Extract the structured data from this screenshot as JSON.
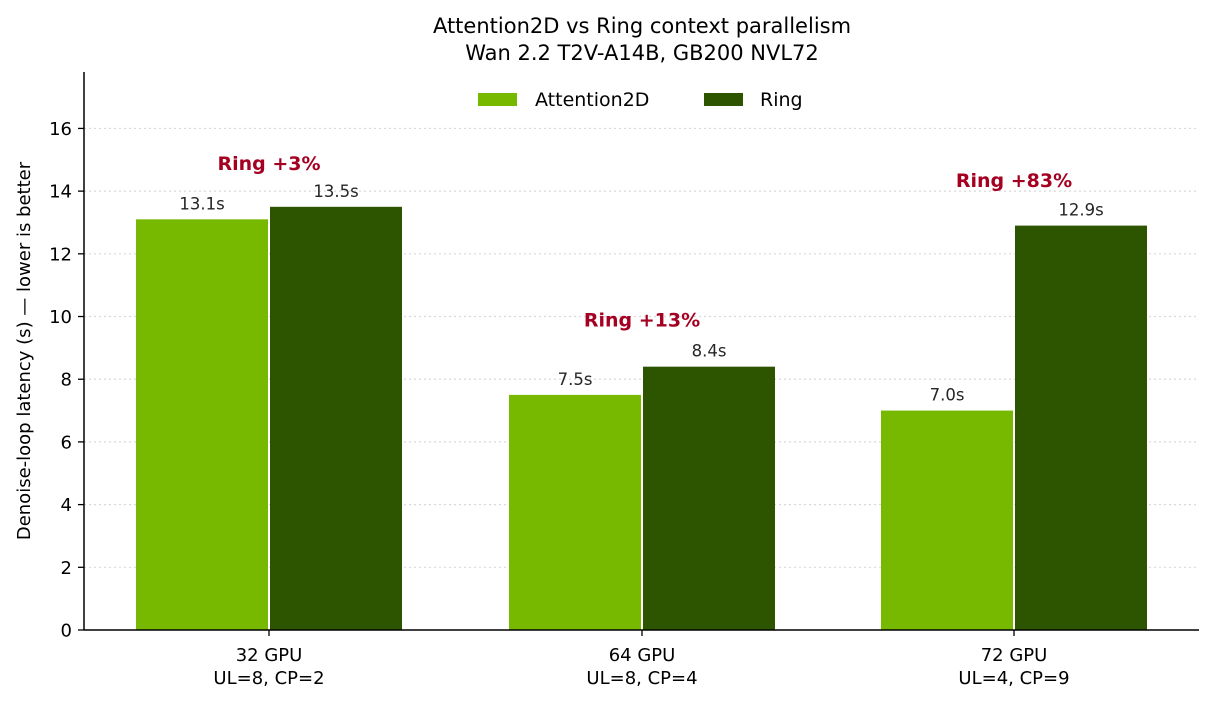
{
  "colors": {
    "attention2d": "#76b900",
    "ring": "#2d5500",
    "annotation": "#a50021",
    "grid": "#d9d9d9",
    "axis": "#000000"
  },
  "chart_data": {
    "type": "bar",
    "title": "Attention2D vs Ring context parallelism",
    "subtitle": "Wan 2.2 T2V-A14B, GB200 NVL72",
    "xlabel": "",
    "ylabel": "Denoise-loop latency (s)  —  lower is better",
    "ylim": [
      0,
      17.8
    ],
    "yticks": [
      0,
      2,
      4,
      6,
      8,
      10,
      12,
      14,
      16
    ],
    "grid": "y, dotted",
    "legend_position": "top-center",
    "categories": [
      "32 GPU",
      "64 GPU",
      "72 GPU"
    ],
    "category_sublabels": [
      "UL=8, CP=2",
      "UL=8, CP=4",
      "UL=4, CP=9"
    ],
    "series": [
      {
        "name": "Attention2D",
        "values": [
          13.1,
          7.5,
          7.0
        ],
        "labels": [
          "13.1s",
          "7.5s",
          "7.0s"
        ]
      },
      {
        "name": "Ring",
        "values": [
          13.5,
          8.4,
          12.9
        ],
        "labels": [
          "13.5s",
          "8.4s",
          "12.9s"
        ]
      }
    ],
    "annotations": [
      {
        "text": "Ring +3%",
        "category": 0,
        "y": 14.9
      },
      {
        "text": "Ring +13%",
        "category": 1,
        "y": 9.9
      },
      {
        "text": "Ring +83%",
        "category": 2,
        "y": 14.35
      }
    ]
  }
}
